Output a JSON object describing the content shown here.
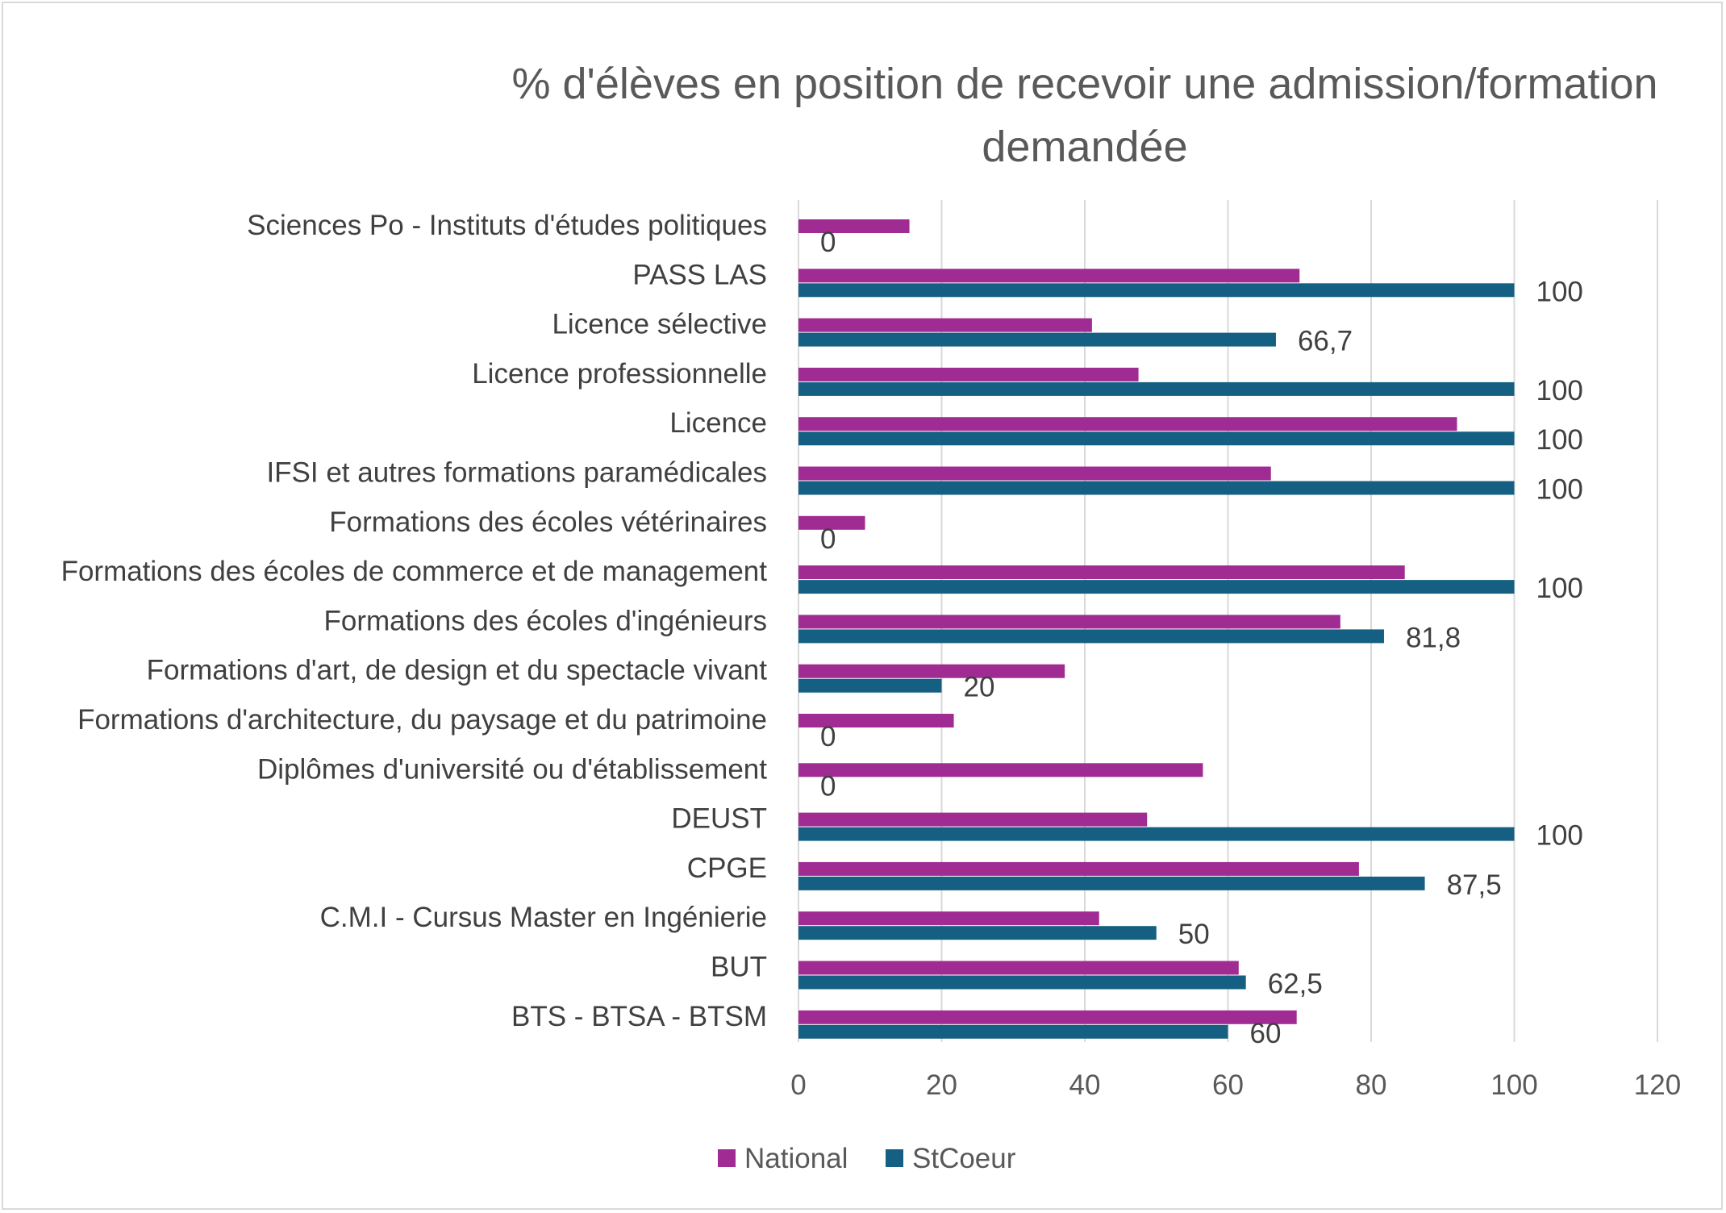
{
  "chart_data": {
    "type": "bar",
    "orientation": "horizontal",
    "title": "% d'élèves en position de recevoir une admission/formation demandée",
    "title_lines": [
      "% d'élèves en position de recevoir une admission/formation",
      "demandée"
    ],
    "xlabel": "",
    "ylabel": "",
    "xlim": [
      0,
      120
    ],
    "x_ticks": [
      0,
      20,
      40,
      60,
      80,
      100,
      120
    ],
    "x_tick_labels": [
      "0",
      "20",
      "40",
      "60",
      "80",
      "100",
      "120"
    ],
    "grid": "vertical",
    "legend_position": "bottom",
    "categories": [
      "Sciences Po - Instituts d'études politiques",
      "PASS LAS",
      "Licence sélective",
      "Licence professionnelle",
      "Licence",
      "IFSI et autres formations paramédicales",
      "Formations des écoles vétérinaires",
      "Formations des écoles de commerce et de management",
      "Formations des écoles d'ingénieurs",
      "Formations d'art, de design et du spectacle vivant",
      "Formations d'architecture, du paysage et du patrimoine",
      "Diplômes d'université ou d'établissement",
      "DEUST",
      "CPGE",
      "C.M.I - Cursus Master en Ingénierie",
      "BUT",
      "BTS - BTSA - BTSM"
    ],
    "series": [
      {
        "name": "National",
        "color": "#a02b93",
        "values": [
          15.5,
          70,
          41,
          47.5,
          92,
          66,
          9.3,
          84.7,
          75.7,
          37.2,
          21.7,
          56.5,
          48.7,
          78.3,
          42,
          61.5,
          69.6
        ]
      },
      {
        "name": "StCoeur",
        "color": "#156082",
        "values": [
          0,
          100,
          66.7,
          100,
          100,
          100,
          0,
          100,
          81.8,
          20,
          0,
          0,
          100,
          87.5,
          50,
          62.5,
          60
        ],
        "data_labels": [
          "0",
          "100",
          "66,7",
          "100",
          "100",
          "100",
          "0",
          "100",
          "81,8",
          "20",
          "0",
          "0",
          "100",
          "87,5",
          "50",
          "62,5",
          "60"
        ]
      }
    ]
  }
}
